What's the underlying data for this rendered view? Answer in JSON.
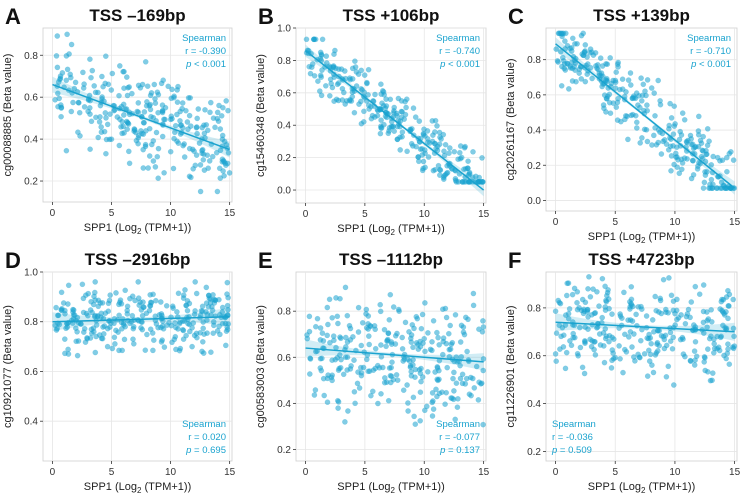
{
  "figure": {
    "accent_color": "#1aa3cf",
    "x_label_prefix": "SPP1 (Log",
    "x_label_sub": "2",
    "x_label_suffix": " (TPM+1))",
    "y_label_suffix": " (Beta value)"
  },
  "chart_data": [
    {
      "type": "scatter",
      "panel_letter": "A",
      "title": "TSS –169bp",
      "probe": "cg00088885",
      "stat_method": "Spearman",
      "r_text": "r = -0.390",
      "p_prefix": "p",
      "p_suffix": " < 0.001",
      "legend_position": "top-right",
      "xlim": [
        -0.8,
        15.2
      ],
      "ylim": [
        0.1,
        0.93
      ],
      "xticks": [
        0,
        5,
        10,
        15
      ],
      "yticks": [
        0.2,
        0.4,
        0.6,
        0.8
      ],
      "ytick_labels": [
        "0.2",
        "0.4",
        "0.6",
        "0.8"
      ],
      "fit": {
        "x": [
          0,
          15
        ],
        "y": [
          0.66,
          0.35
        ]
      },
      "points_spec": {
        "seed": 11,
        "n": 300,
        "noise": 0.16,
        "x_range": [
          0,
          15
        ],
        "y_range": [
          0.15,
          0.9
        ]
      }
    },
    {
      "type": "scatter",
      "panel_letter": "B",
      "title": "TSS +106bp",
      "probe": "cg15460348",
      "stat_method": "Spearman",
      "r_text": "r = -0.740",
      "p_prefix": "p",
      "p_suffix": " < 0.001",
      "legend_position": "top-right",
      "xlim": [
        -0.8,
        15.2
      ],
      "ylim": [
        -0.08,
        1.0
      ],
      "xticks": [
        0,
        5,
        10,
        15
      ],
      "yticks": [
        0.0,
        0.2,
        0.4,
        0.6,
        0.8,
        1.0
      ],
      "ytick_labels": [
        "0.0",
        "0.2",
        "0.4",
        "0.6",
        "0.8",
        "1.0"
      ],
      "fit": {
        "x": [
          0,
          15
        ],
        "y": [
          0.86,
          0.0
        ]
      },
      "points_spec": {
        "seed": 23,
        "n": 300,
        "noise": 0.13,
        "x_range": [
          0,
          15
        ],
        "y_range": [
          0.05,
          0.93
        ]
      }
    },
    {
      "type": "scatter",
      "panel_letter": "C",
      "title": "TSS +139bp",
      "probe": "cg20261167",
      "stat_method": "Spearman",
      "r_text": "r = -0.710",
      "p_prefix": "p",
      "p_suffix": " < 0.001",
      "legend_position": "top-right",
      "xlim": [
        -0.8,
        15.2
      ],
      "ylim": [
        -0.06,
        0.98
      ],
      "xticks": [
        0,
        5,
        10,
        15
      ],
      "yticks": [
        0.0,
        0.2,
        0.4,
        0.6,
        0.8
      ],
      "ytick_labels": [
        "0.0",
        "0.2",
        "0.4",
        "0.6",
        "0.8"
      ],
      "fit": {
        "x": [
          0,
          15
        ],
        "y": [
          0.89,
          0.07
        ]
      },
      "points_spec": {
        "seed": 37,
        "n": 300,
        "noise": 0.14,
        "x_range": [
          0,
          15
        ],
        "y_range": [
          0.07,
          0.95
        ]
      }
    },
    {
      "type": "scatter",
      "panel_letter": "D",
      "title": "TSS –2916bp",
      "probe": "cg10921077",
      "stat_method": "Spearman",
      "r_text": "r = 0.020",
      "p_prefix": "p",
      "p_suffix": " = 0.695",
      "legend_position": "bottom-right",
      "xlim": [
        -0.8,
        15.2
      ],
      "ylim": [
        0.24,
        1.0
      ],
      "xticks": [
        0,
        5,
        10,
        15
      ],
      "yticks": [
        0.4,
        0.6,
        0.8,
        1.0
      ],
      "ytick_labels": [
        "0.4",
        "0.6",
        "0.8",
        "1.0"
      ],
      "fit": {
        "x": [
          0,
          15
        ],
        "y": [
          0.8,
          0.82
        ]
      },
      "points_spec": {
        "seed": 41,
        "n": 300,
        "noise": 0.09,
        "x_range": [
          0,
          15
        ],
        "y_range": [
          0.27,
          0.96
        ]
      }
    },
    {
      "type": "scatter",
      "panel_letter": "E",
      "title": "TSS –1112bp",
      "probe": "cg00583003",
      "stat_method": "Spearman",
      "r_text": "r = -0.077",
      "p_prefix": "p",
      "p_suffix": " = 0.137",
      "legend_position": "bottom-right",
      "xlim": [
        -0.8,
        15.2
      ],
      "ylim": [
        0.15,
        0.97
      ],
      "xticks": [
        0,
        5,
        10,
        15
      ],
      "yticks": [
        0.2,
        0.4,
        0.6,
        0.8
      ],
      "ytick_labels": [
        "0.2",
        "0.4",
        "0.6",
        "0.8"
      ],
      "fit": {
        "x": [
          0,
          15
        ],
        "y": [
          0.64,
          0.58
        ]
      },
      "points_spec": {
        "seed": 53,
        "n": 300,
        "noise": 0.19,
        "x_range": [
          0,
          15
        ],
        "y_range": [
          0.19,
          0.95
        ]
      }
    },
    {
      "type": "scatter",
      "panel_letter": "F",
      "title": "TSS +4723bp",
      "probe": "cg11226901",
      "stat_method": "Spearman",
      "r_text": "r = -0.036",
      "p_prefix": "p",
      "p_suffix": " = 0.509",
      "legend_position": "bottom-left",
      "xlim": [
        -0.8,
        15.2
      ],
      "ylim": [
        0.16,
        0.95
      ],
      "xticks": [
        0,
        5,
        10,
        15
      ],
      "yticks": [
        0.2,
        0.4,
        0.6,
        0.8
      ],
      "ytick_labels": [
        "0.2",
        "0.4",
        "0.6",
        "0.8"
      ],
      "fit": {
        "x": [
          0,
          15
        ],
        "y": [
          0.74,
          0.7
        ]
      },
      "points_spec": {
        "seed": 67,
        "n": 300,
        "noise": 0.14,
        "x_range": [
          0,
          15
        ],
        "y_range": [
          0.19,
          0.93
        ]
      }
    }
  ]
}
